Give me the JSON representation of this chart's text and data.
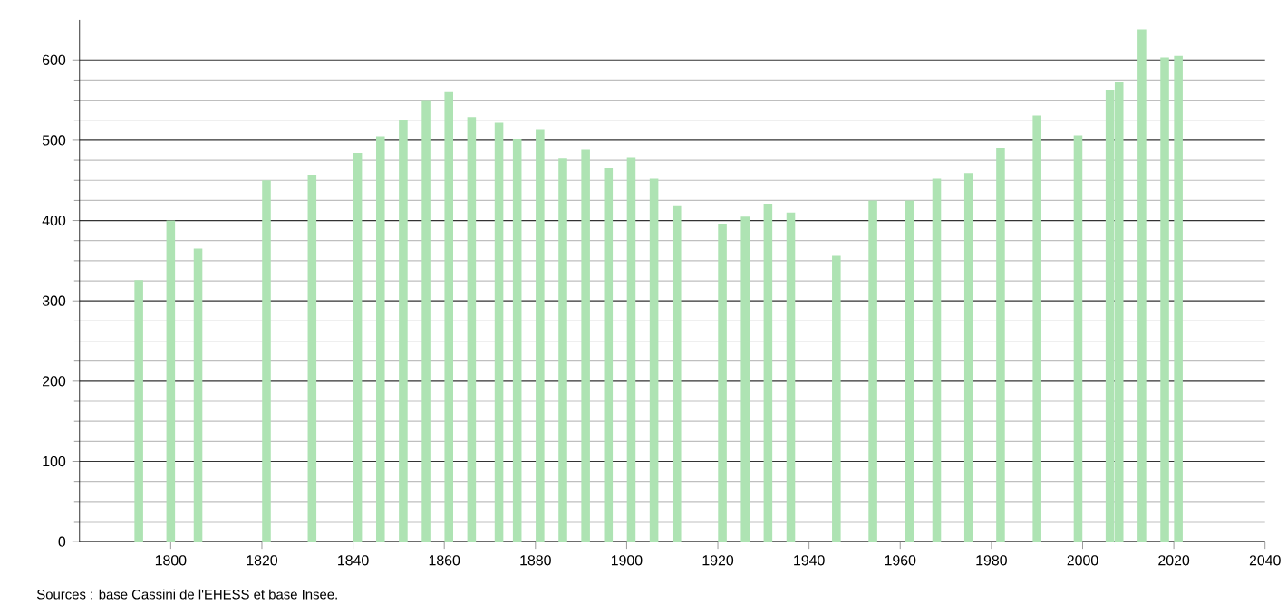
{
  "chart_data": {
    "type": "bar",
    "x": [
      1793,
      1800,
      1806,
      1821,
      1831,
      1841,
      1846,
      1851,
      1856,
      1861,
      1866,
      1872,
      1876,
      1881,
      1886,
      1891,
      1896,
      1901,
      1906,
      1911,
      1921,
      1926,
      1931,
      1936,
      1946,
      1954,
      1962,
      1968,
      1975,
      1982,
      1990,
      1999,
      2006,
      2008,
      2013,
      2018,
      2021
    ],
    "values": [
      326,
      400,
      365,
      450,
      457,
      484,
      505,
      525,
      550,
      560,
      529,
      522,
      502,
      514,
      477,
      488,
      466,
      479,
      452,
      419,
      396,
      405,
      421,
      410,
      356,
      425,
      425,
      452,
      459,
      491,
      531,
      506,
      563,
      572,
      638,
      603,
      605
    ],
    "color": "#aee3b3",
    "xlim": [
      1780,
      2040
    ],
    "xticks": [
      1800,
      1820,
      1840,
      1860,
      1880,
      1900,
      1920,
      1940,
      1960,
      1980,
      2000,
      2020,
      2040
    ],
    "ylim": [
      0,
      650
    ],
    "yticks": [
      0,
      100,
      200,
      300,
      400,
      500,
      600
    ],
    "grid": "y",
    "annotations": [
      "Sources : base Cassini de l'EHESS et base Insee."
    ]
  }
}
